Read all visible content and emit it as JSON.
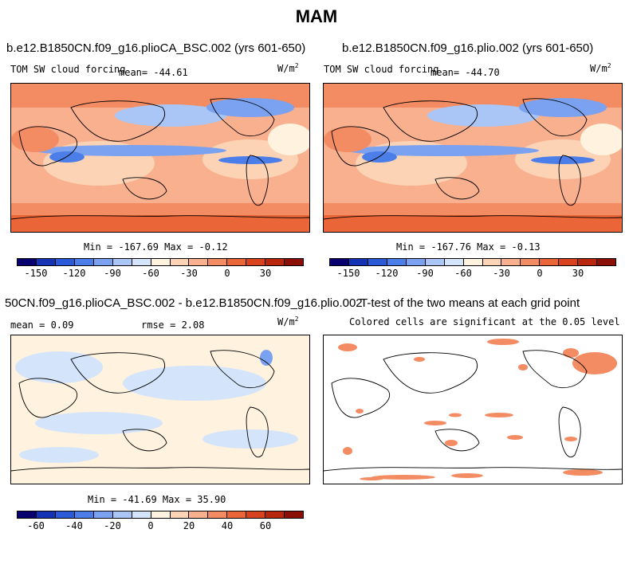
{
  "figure": {
    "title": "MAM"
  },
  "panels": {
    "p1": {
      "title": "b.e12.B1850CN.f09_g16.plioCA_BSC.002 (yrs 601-650)",
      "variable": "TOM SW cloud forcing",
      "mean": "mean= -44.61",
      "units": "W/m",
      "units_sup": "2",
      "minmax": "Min = -167.69 Max =  -0.12"
    },
    "p2": {
      "title": "b.e12.B1850CN.f09_g16.plio.002 (yrs 601-650)",
      "variable": "TOM SW cloud forcing",
      "mean": "mean= -44.70",
      "units": "W/m",
      "units_sup": "2",
      "minmax": "Min = -167.76 Max =  -0.13"
    },
    "p3": {
      "title": "50CN.f09_g16.plioCA_BSC.002 - b.e12.B1850CN.f09_g16.plio.002",
      "mean": "mean =   0.09",
      "rmse": "rmse =   2.08",
      "units": "W/m",
      "units_sup": "2",
      "minmax": "Min = -41.69 Max =  35.90"
    },
    "p4": {
      "title": "T-test of the two means at each grid point",
      "subtitle": "Colored cells are significant at the 0.05 level"
    }
  },
  "colorbar_top": {
    "ticks": [
      "-150",
      "-120",
      "-90",
      "-60",
      "-30",
      "0",
      "30"
    ],
    "colors": [
      "#08006f",
      "#1432b4",
      "#2a5ad8",
      "#4b7ee8",
      "#7aa2f0",
      "#a9c6f7",
      "#d4e4fb",
      "#fff2de",
      "#fdd3b6",
      "#f9b08e",
      "#f38b63",
      "#ea6537",
      "#d8421e",
      "#b8260e",
      "#8c0f05"
    ]
  },
  "colorbar_bottom": {
    "ticks": [
      "-60",
      "-40",
      "-20",
      "0",
      "20",
      "40",
      "60"
    ],
    "colors": [
      "#08006f",
      "#1432b4",
      "#2a5ad8",
      "#4b7ee8",
      "#7aa2f0",
      "#a9c6f7",
      "#d4e4fb",
      "#fff2de",
      "#fdd3b6",
      "#f9b08e",
      "#f38b63",
      "#ea6537",
      "#d8421e",
      "#b8260e",
      "#8c0f05"
    ]
  }
}
